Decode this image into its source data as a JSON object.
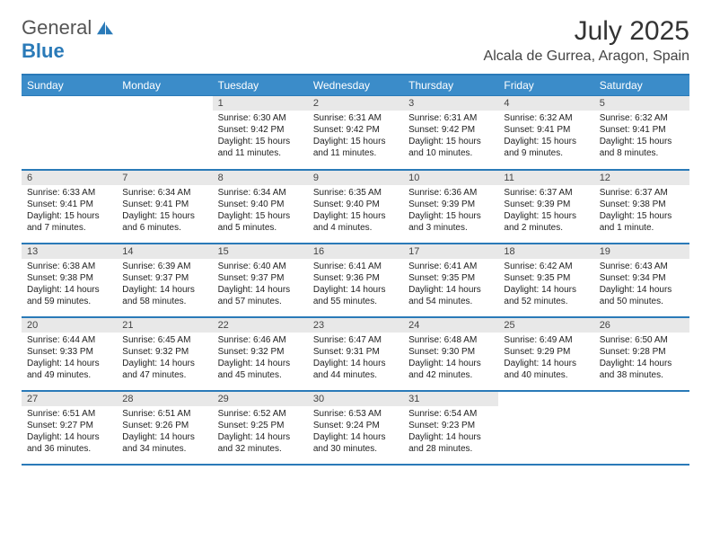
{
  "logo": {
    "text1": "General",
    "text2": "Blue"
  },
  "title": "July 2025",
  "location": "Alcala de Gurrea, Aragon, Spain",
  "colors": {
    "accent": "#2a7ab8",
    "header_bg": "#3b8cc9",
    "daynum_bg": "#e8e8e8",
    "page_bg": "#ffffff",
    "text": "#333333"
  },
  "dayHeaders": [
    "Sunday",
    "Monday",
    "Tuesday",
    "Wednesday",
    "Thursday",
    "Friday",
    "Saturday"
  ],
  "weeks": [
    [
      null,
      null,
      {
        "n": "1",
        "sr": "6:30 AM",
        "ss": "9:42 PM",
        "dl": "15 hours and 11 minutes."
      },
      {
        "n": "2",
        "sr": "6:31 AM",
        "ss": "9:42 PM",
        "dl": "15 hours and 11 minutes."
      },
      {
        "n": "3",
        "sr": "6:31 AM",
        "ss": "9:42 PM",
        "dl": "15 hours and 10 minutes."
      },
      {
        "n": "4",
        "sr": "6:32 AM",
        "ss": "9:41 PM",
        "dl": "15 hours and 9 minutes."
      },
      {
        "n": "5",
        "sr": "6:32 AM",
        "ss": "9:41 PM",
        "dl": "15 hours and 8 minutes."
      }
    ],
    [
      {
        "n": "6",
        "sr": "6:33 AM",
        "ss": "9:41 PM",
        "dl": "15 hours and 7 minutes."
      },
      {
        "n": "7",
        "sr": "6:34 AM",
        "ss": "9:41 PM",
        "dl": "15 hours and 6 minutes."
      },
      {
        "n": "8",
        "sr": "6:34 AM",
        "ss": "9:40 PM",
        "dl": "15 hours and 5 minutes."
      },
      {
        "n": "9",
        "sr": "6:35 AM",
        "ss": "9:40 PM",
        "dl": "15 hours and 4 minutes."
      },
      {
        "n": "10",
        "sr": "6:36 AM",
        "ss": "9:39 PM",
        "dl": "15 hours and 3 minutes."
      },
      {
        "n": "11",
        "sr": "6:37 AM",
        "ss": "9:39 PM",
        "dl": "15 hours and 2 minutes."
      },
      {
        "n": "12",
        "sr": "6:37 AM",
        "ss": "9:38 PM",
        "dl": "15 hours and 1 minute."
      }
    ],
    [
      {
        "n": "13",
        "sr": "6:38 AM",
        "ss": "9:38 PM",
        "dl": "14 hours and 59 minutes."
      },
      {
        "n": "14",
        "sr": "6:39 AM",
        "ss": "9:37 PM",
        "dl": "14 hours and 58 minutes."
      },
      {
        "n": "15",
        "sr": "6:40 AM",
        "ss": "9:37 PM",
        "dl": "14 hours and 57 minutes."
      },
      {
        "n": "16",
        "sr": "6:41 AM",
        "ss": "9:36 PM",
        "dl": "14 hours and 55 minutes."
      },
      {
        "n": "17",
        "sr": "6:41 AM",
        "ss": "9:35 PM",
        "dl": "14 hours and 54 minutes."
      },
      {
        "n": "18",
        "sr": "6:42 AM",
        "ss": "9:35 PM",
        "dl": "14 hours and 52 minutes."
      },
      {
        "n": "19",
        "sr": "6:43 AM",
        "ss": "9:34 PM",
        "dl": "14 hours and 50 minutes."
      }
    ],
    [
      {
        "n": "20",
        "sr": "6:44 AM",
        "ss": "9:33 PM",
        "dl": "14 hours and 49 minutes."
      },
      {
        "n": "21",
        "sr": "6:45 AM",
        "ss": "9:32 PM",
        "dl": "14 hours and 47 minutes."
      },
      {
        "n": "22",
        "sr": "6:46 AM",
        "ss": "9:32 PM",
        "dl": "14 hours and 45 minutes."
      },
      {
        "n": "23",
        "sr": "6:47 AM",
        "ss": "9:31 PM",
        "dl": "14 hours and 44 minutes."
      },
      {
        "n": "24",
        "sr": "6:48 AM",
        "ss": "9:30 PM",
        "dl": "14 hours and 42 minutes."
      },
      {
        "n": "25",
        "sr": "6:49 AM",
        "ss": "9:29 PM",
        "dl": "14 hours and 40 minutes."
      },
      {
        "n": "26",
        "sr": "6:50 AM",
        "ss": "9:28 PM",
        "dl": "14 hours and 38 minutes."
      }
    ],
    [
      {
        "n": "27",
        "sr": "6:51 AM",
        "ss": "9:27 PM",
        "dl": "14 hours and 36 minutes."
      },
      {
        "n": "28",
        "sr": "6:51 AM",
        "ss": "9:26 PM",
        "dl": "14 hours and 34 minutes."
      },
      {
        "n": "29",
        "sr": "6:52 AM",
        "ss": "9:25 PM",
        "dl": "14 hours and 32 minutes."
      },
      {
        "n": "30",
        "sr": "6:53 AM",
        "ss": "9:24 PM",
        "dl": "14 hours and 30 minutes."
      },
      {
        "n": "31",
        "sr": "6:54 AM",
        "ss": "9:23 PM",
        "dl": "14 hours and 28 minutes."
      },
      null,
      null
    ]
  ],
  "labels": {
    "sunrise": "Sunrise:",
    "sunset": "Sunset:",
    "daylight": "Daylight:"
  }
}
